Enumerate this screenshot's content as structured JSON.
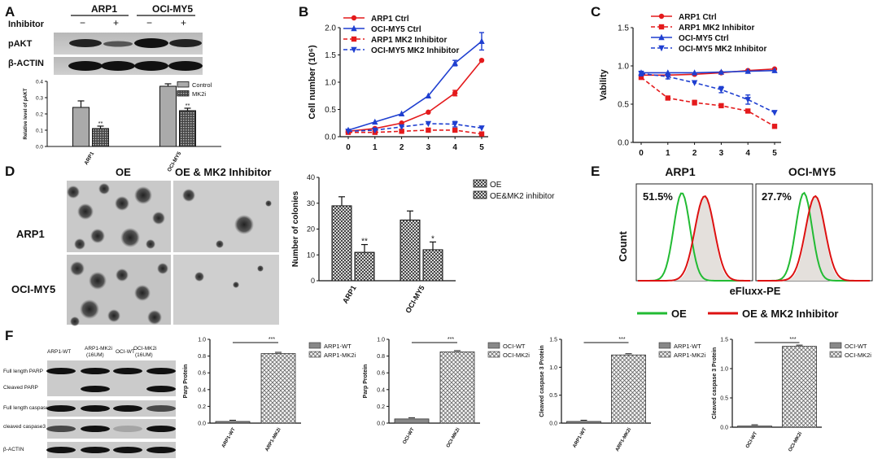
{
  "panel_letters": {
    "A": "A",
    "B": "B",
    "C": "C",
    "D": "D",
    "E": "E",
    "F": "F"
  },
  "panelA": {
    "cell_lines": [
      "ARP1",
      "OCI-MY5"
    ],
    "inhibitor_label": "Inhibitor",
    "inhibitor_marks": [
      "−",
      "+",
      "−",
      "+"
    ],
    "blot_labels": [
      "pAKT",
      "β-ACTIN"
    ],
    "legend": [
      "Control",
      "MK2i"
    ]
  },
  "panelD": {
    "column_titles": [
      "OE",
      "OE & MK2 Inhibitor"
    ],
    "row_labels": [
      "ARP1",
      "OCI-MY5"
    ],
    "legend": [
      "OE",
      "OE&MK2 inhibitor"
    ]
  },
  "panelE": {
    "titles": [
      "ARP1",
      "OCI-MY5"
    ],
    "percents": [
      "51.5%",
      "27.7%"
    ],
    "ylabel": "Count",
    "xlabel": "eFluxx-PE",
    "legend": [
      "OE",
      "OE & MK2 Inhibitor"
    ],
    "colors": {
      "oe": "#22bb33",
      "mk2": "#dd1111"
    }
  },
  "panelF": {
    "lane_labels": [
      "ARP1-WT",
      "ARP1-MK2i (16UM)",
      "OCI-WT",
      "OCI-MK2i (16UM)"
    ],
    "row_labels": [
      "Full length PARP",
      "Cleaved PARP",
      "Full length caspase3",
      "cleaved  caspase3",
      "β-ACTIN"
    ]
  },
  "chart_data": [
    {
      "id": "A",
      "type": "bar",
      "categories": [
        "ARP1",
        "OCI-MY5"
      ],
      "series": [
        {
          "name": "Control",
          "values": [
            0.24,
            0.37
          ],
          "errors": [
            0.04,
            0.015
          ]
        },
        {
          "name": "MK2i",
          "values": [
            0.11,
            0.22
          ],
          "errors": [
            0.015,
            0.015
          ]
        }
      ],
      "annotations": [
        "**",
        "**"
      ],
      "ylabel": "Relative level of pAKT",
      "ylim": [
        0,
        0.4
      ],
      "yticks": [
        "0.0",
        "0.1",
        "0.2",
        "0.3",
        "0.4"
      ]
    },
    {
      "id": "B",
      "type": "line",
      "x": [
        0,
        1,
        2,
        3,
        4,
        5
      ],
      "series": [
        {
          "name": "ARP1 Ctrl",
          "values": [
            0.1,
            0.15,
            0.25,
            0.45,
            0.8,
            1.4
          ],
          "errors": [
            0,
            0,
            0,
            0,
            0.05,
            0
          ],
          "color": "#e41a1c",
          "marker": "circle",
          "dash": false
        },
        {
          "name": "OCI-MY5 Ctrl",
          "values": [
            0.12,
            0.27,
            0.42,
            0.75,
            1.35,
            1.75
          ],
          "errors": [
            0,
            0,
            0,
            0,
            0.05,
            0.16
          ],
          "color": "#1f3fd0",
          "marker": "triangle",
          "dash": false
        },
        {
          "name": "ARP1 MK2 Inhibitor",
          "values": [
            0.08,
            0.08,
            0.1,
            0.12,
            0.12,
            0.05
          ],
          "errors": [
            0,
            0,
            0,
            0,
            0,
            0
          ],
          "color": "#e41a1c",
          "marker": "square",
          "dash": true
        },
        {
          "name": "OCI-MY5 MK2 Inhibitor",
          "values": [
            0.1,
            0.12,
            0.18,
            0.24,
            0.23,
            0.16
          ],
          "errors": [
            0,
            0,
            0,
            0,
            0.05,
            0
          ],
          "color": "#1f3fd0",
          "marker": "tridown",
          "dash": true
        }
      ],
      "ylabel": "Cell number (10⁶)",
      "ylim": [
        0,
        2.0
      ],
      "yticks": [
        "0.0",
        "0.5",
        "1.0",
        "1.5",
        "2.0"
      ],
      "xticks": [
        "0",
        "1",
        "2",
        "3",
        "4",
        "5"
      ]
    },
    {
      "id": "C",
      "type": "line",
      "x": [
        0,
        1,
        2,
        3,
        4,
        5
      ],
      "series": [
        {
          "name": "ARP1 Ctrl",
          "values": [
            0.88,
            0.88,
            0.89,
            0.91,
            0.94,
            0.96
          ],
          "errors": [
            0,
            0,
            0,
            0,
            0,
            0
          ],
          "color": "#e41a1c",
          "marker": "circle",
          "dash": false
        },
        {
          "name": "ARP1 MK2 Inhibitor",
          "values": [
            0.85,
            0.58,
            0.52,
            0.48,
            0.41,
            0.21
          ],
          "errors": [
            0,
            0,
            0.03,
            0,
            0,
            0
          ],
          "color": "#e41a1c",
          "marker": "square",
          "dash": true
        },
        {
          "name": "OCI-MY5 Ctrl",
          "values": [
            0.91,
            0.91,
            0.91,
            0.92,
            0.93,
            0.94
          ],
          "errors": [
            0,
            0,
            0,
            0,
            0,
            0
          ],
          "color": "#1f3fd0",
          "marker": "triangle",
          "dash": false
        },
        {
          "name": "OCI-MY5 MK2 Inhibitor",
          "values": [
            0.9,
            0.86,
            0.78,
            0.69,
            0.56,
            0.39
          ],
          "errors": [
            0.03,
            0.03,
            0,
            0.04,
            0.06,
            0
          ],
          "color": "#1f3fd0",
          "marker": "tridown",
          "dash": true
        }
      ],
      "ylabel": "Vability",
      "ylim": [
        0,
        1.5
      ],
      "yticks": [
        "0.0",
        "0.5",
        "1.0",
        "1.5"
      ],
      "xticks": [
        "0",
        "1",
        "2",
        "3",
        "4",
        "5"
      ]
    },
    {
      "id": "D",
      "type": "bar",
      "categories": [
        "ARP1",
        "OCI-MY5"
      ],
      "series": [
        {
          "name": "OE",
          "values": [
            29,
            23.5
          ],
          "errors": [
            3.5,
            3.5
          ]
        },
        {
          "name": "OE&MK2 inhibitor",
          "values": [
            11,
            12
          ],
          "errors": [
            3,
            3
          ]
        }
      ],
      "annotations": [
        "**",
        "*"
      ],
      "ylabel": "Number of colonies",
      "ylim": [
        0,
        40
      ],
      "yticks": [
        "0",
        "10",
        "20",
        "30",
        "40"
      ]
    },
    {
      "id": "F1",
      "type": "bar",
      "categories": [
        "ARP1-WT",
        "ARP1-MK2i"
      ],
      "values": [
        0.02,
        0.83
      ],
      "legend": [
        "ARP1-WT",
        "ARP1-MK2i"
      ],
      "annotation": "***",
      "ylabel": "Parp Protein",
      "ylim": [
        0,
        1.0
      ],
      "yticks": [
        "0.0",
        "0.2",
        "0.4",
        "0.6",
        "0.8",
        "1.0"
      ]
    },
    {
      "id": "F2",
      "type": "bar",
      "categories": [
        "OCI-WT",
        "OCI-MK2i"
      ],
      "values": [
        0.05,
        0.85
      ],
      "legend": [
        "OCI-WT",
        "OCI-MK2i"
      ],
      "annotation": "***",
      "ylabel": "Parp Protein",
      "ylim": [
        0,
        1.0
      ],
      "yticks": [
        "0.0",
        "0.2",
        "0.4",
        "0.6",
        "0.8",
        "1.0"
      ]
    },
    {
      "id": "F3",
      "type": "bar",
      "categories": [
        "ARP1-WT",
        "ARP1-MK2i"
      ],
      "values": [
        0.03,
        1.22
      ],
      "legend": [
        "ARP1-WT",
        "ARP1-MK2i"
      ],
      "annotation": "***",
      "ylabel": "Cleaved caspase 3 Protein",
      "ylim": [
        0,
        1.5
      ],
      "yticks": [
        "0.0",
        "0.5",
        "1.0",
        "1.5"
      ]
    },
    {
      "id": "F4",
      "type": "bar",
      "categories": [
        "OCI-WT",
        "OCI-MK2i"
      ],
      "values": [
        0.02,
        1.38
      ],
      "legend": [
        "OCI-WT",
        "OCI-MK2i"
      ],
      "annotation": "***",
      "ylabel": "Cleaved caspase 3 Protein",
      "ylim": [
        0,
        1.5
      ],
      "yticks": [
        "0.0",
        "0.5",
        "1.0",
        "1.5"
      ]
    }
  ]
}
